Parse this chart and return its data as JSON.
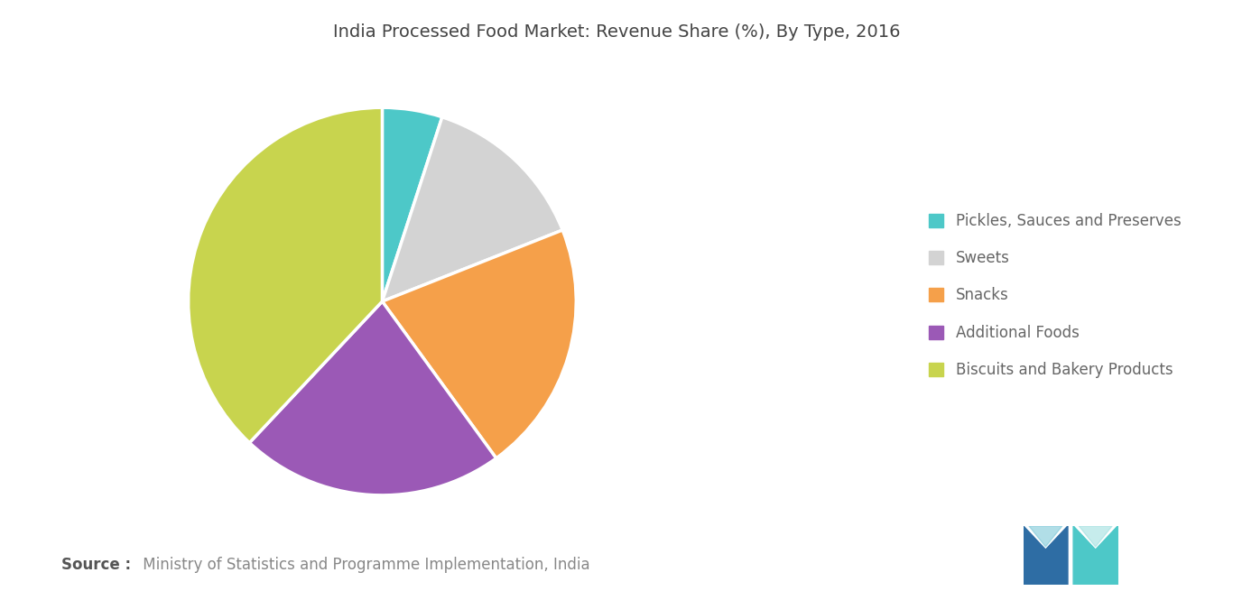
{
  "title": "India Processed Food Market: Revenue Share (%), By Type, 2016",
  "labels": [
    "Pickles, Sauces and Preserves",
    "Sweets",
    "Snacks",
    "Additional Foods",
    "Biscuits and Bakery Products"
  ],
  "values": [
    5,
    14,
    21,
    22,
    38
  ],
  "colors": [
    "#4dc8c8",
    "#d3d3d3",
    "#f5a04a",
    "#9b59b6",
    "#c8d44e"
  ],
  "legend_labels": [
    "Pickles, Sauces and Preserves",
    "Sweets",
    "Snacks",
    "Additional Foods",
    "Biscuits and Bakery Products"
  ],
  "source_bold": "Source :",
  "source_rest": " Ministry of Statistics and Programme Implementation, India",
  "background_color": "#ffffff",
  "title_fontsize": 14,
  "legend_fontsize": 12,
  "source_fontsize": 12
}
